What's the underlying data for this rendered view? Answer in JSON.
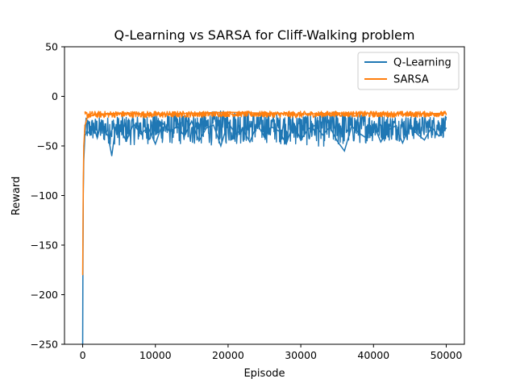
{
  "chart_data": {
    "type": "line",
    "title": "Q-Learning vs SARSA for Cliff-Walking problem",
    "xlabel": "Episode",
    "ylabel": "Reward",
    "xlim": [
      -2500,
      52500
    ],
    "ylim": [
      -250,
      50
    ],
    "xticks": [
      0,
      10000,
      20000,
      30000,
      40000,
      50000
    ],
    "xtick_labels": [
      "0",
      "10000",
      "20000",
      "30000",
      "40000",
      "50000"
    ],
    "yticks": [
      50,
      0,
      -50,
      -100,
      -150,
      -200,
      -250
    ],
    "ytick_labels": [
      "50",
      "0",
      "−50",
      "−100",
      "−150",
      "−200",
      "−250"
    ],
    "grid": false,
    "legend_position": "top-right",
    "series": [
      {
        "name": "Q-Learning",
        "color": "#1f77b4",
        "x": [
          0,
          30,
          80,
          150,
          300,
          600,
          1000,
          1500,
          2000,
          2500,
          3000,
          3500,
          4000,
          4500,
          5000,
          6000,
          7000,
          8000,
          9000,
          10000,
          11000,
          12000,
          13000,
          14000,
          15000,
          16000,
          17000,
          18000,
          19000,
          20000,
          21000,
          22000,
          23000,
          24000,
          25000,
          26000,
          27000,
          28000,
          29000,
          30000,
          31000,
          32000,
          33000,
          34000,
          35000,
          36000,
          37000,
          38000,
          39000,
          40000,
          41000,
          42000,
          43000,
          44000,
          45000,
          46000,
          47000,
          48000,
          49000,
          50000
        ],
        "values": [
          -250,
          -180,
          -100,
          -65,
          -40,
          -35,
          -38,
          -30,
          -42,
          -28,
          -35,
          -40,
          -60,
          -33,
          -30,
          -45,
          -28,
          -38,
          -31,
          -48,
          -27,
          -36,
          -30,
          -40,
          -25,
          -45,
          -32,
          -29,
          -50,
          -26,
          -38,
          -33,
          -46,
          -28,
          -41,
          -31,
          -35,
          -48,
          -27,
          -44,
          -33,
          -29,
          -39,
          -31,
          -45,
          -55,
          -30,
          -37,
          -42,
          -28,
          -46,
          -34,
          -30,
          -47,
          -29,
          -38,
          -44,
          -31,
          -40,
          -32
        ],
        "envelope": {
          "x": [
            300,
            5000,
            10000,
            15000,
            20000,
            25000,
            30000,
            35000,
            40000,
            45000,
            50000
          ],
          "upper": [
            -22,
            -20,
            -18,
            -17,
            -14,
            -17,
            -18,
            -15,
            -18,
            -20,
            -20
          ],
          "lower": [
            -45,
            -50,
            -48,
            -50,
            -49,
            -47,
            -50,
            -52,
            -46,
            -45,
            -42
          ]
        }
      },
      {
        "name": "SARSA",
        "color": "#ff7f0e",
        "x": [
          0,
          30,
          80,
          150,
          300,
          600,
          1000,
          2000,
          5000,
          10000,
          15000,
          20000,
          25000,
          30000,
          35000,
          40000,
          45000,
          50000
        ],
        "values": [
          -180,
          -150,
          -90,
          -50,
          -30,
          -22,
          -20,
          -18,
          -17,
          -18,
          -17,
          -16,
          -17,
          -18,
          -17,
          -17,
          -18,
          -17
        ],
        "envelope": {
          "x": [
            300,
            5000,
            10000,
            15000,
            20000,
            25000,
            30000,
            35000,
            40000,
            45000,
            50000
          ],
          "upper": [
            -15,
            -15,
            -15,
            -15,
            -15,
            -15,
            -15,
            -15,
            -15,
            -15,
            -15
          ],
          "lower": [
            -28,
            -26,
            -27,
            -26,
            -25,
            -26,
            -27,
            -25,
            -26,
            -26,
            -25
          ]
        }
      }
    ]
  }
}
